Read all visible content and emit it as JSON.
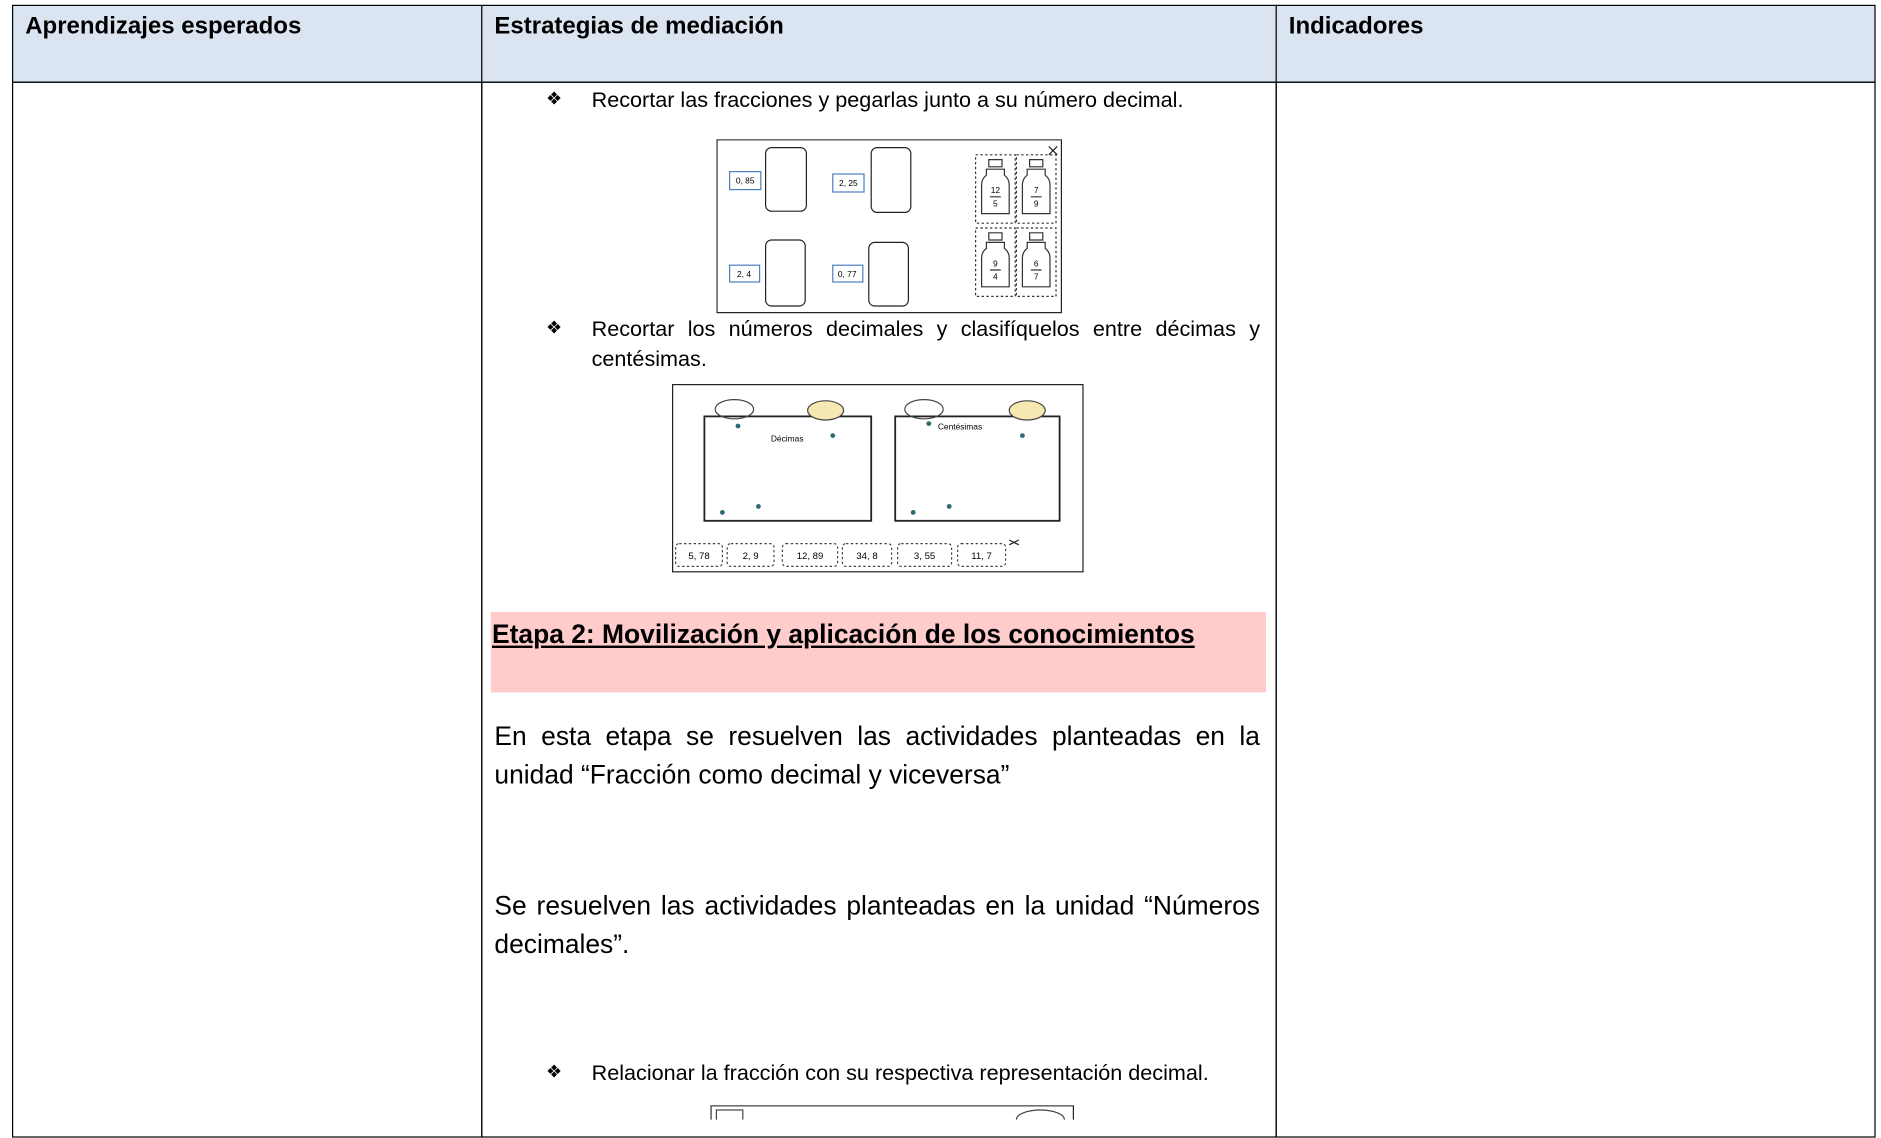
{
  "header": [
    "Aprendizajes esperados",
    "Estrategias de mediación",
    "Indicadores"
  ],
  "items": [
    "Recortar las fracciones y pegarlas junto a su número decimal.",
    "Recortar los números decimales y clasifíquelos entre décimas y centésimas."
  ],
  "figure1": {
    "decimals": [
      "0, 85",
      "2, 25",
      "2, 4",
      "0, 77"
    ],
    "fractions": [
      {
        "numerator": "12",
        "denominator": "5"
      },
      {
        "numerator": "7",
        "denominator": "9"
      },
      {
        "numerator": "9",
        "denominator": "4"
      },
      {
        "numerator": "6",
        "denominator": "7"
      }
    ]
  },
  "figure2": {
    "labels": [
      "Décimas",
      "Centésimas"
    ],
    "numbers": [
      "5, 78",
      "2, 9",
      "12, 89",
      "34, 8",
      "3, 55",
      "11, 7"
    ]
  },
  "stage_heading": "Etapa 2: Movilización y aplicación de los conocimientos",
  "paragraphs": [
    "En esta etapa se resuelven las actividades planteadas en la unidad “Fracción como decimal y viceversa”",
    "Se resuelven las actividades planteadas en la unidad “Números decimales”."
  ],
  "last_item": "Relacionar la fracción con su respectiva representación decimal."
}
